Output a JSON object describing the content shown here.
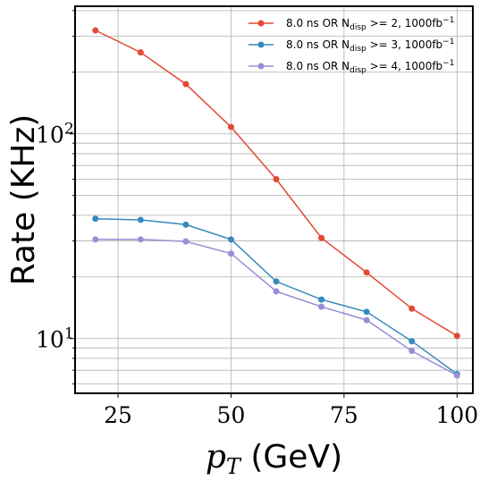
{
  "chart_data": {
    "type": "line",
    "xlabel": "p_T (GeV)",
    "ylabel": "Rate (KHz)",
    "yscale": "log",
    "xlim": [
      15.5,
      103.5
    ],
    "ylim": [
      5.4,
      420
    ],
    "x_ticks": [
      25,
      50,
      75,
      100
    ],
    "y_ticks": [
      10,
      100
    ],
    "y_tick_labels": [
      "10^1",
      "10^2"
    ],
    "grid": true,
    "legend_position": "top-right",
    "x": [
      20,
      30,
      40,
      50,
      60,
      70,
      80,
      90,
      100
    ],
    "series": [
      {
        "name": "8.0 ns OR N_disp >= 2, 1000fb^-1",
        "legend": {
          "prefix": "8.0 ns OR N",
          "sub": "disp",
          "suffix": " >= 2, 1000fb",
          "sup": "−1"
        },
        "color": "#e24a33",
        "values": [
          320,
          250,
          175,
          108,
          60,
          31,
          21,
          14,
          10.3
        ]
      },
      {
        "name": "8.0 ns OR N_disp >= 3, 1000fb^-1",
        "legend": {
          "prefix": "8.0 ns OR N",
          "sub": "disp",
          "suffix": " >= 3, 1000fb",
          "sup": "−1"
        },
        "color": "#348abd",
        "values": [
          38.5,
          38,
          36,
          30.5,
          19,
          15.5,
          13.5,
          9.7,
          6.7
        ]
      },
      {
        "name": "8.0 ns OR N_disp >= 4, 1000fb^-1",
        "legend": {
          "prefix": "8.0 ns OR N",
          "sub": "disp",
          "suffix": " >= 4, 1000fb",
          "sup": "−1"
        },
        "color": "#988ed5",
        "values": [
          30.5,
          30.5,
          29.8,
          26,
          17,
          14.3,
          12.3,
          8.7,
          6.6
        ]
      }
    ]
  }
}
